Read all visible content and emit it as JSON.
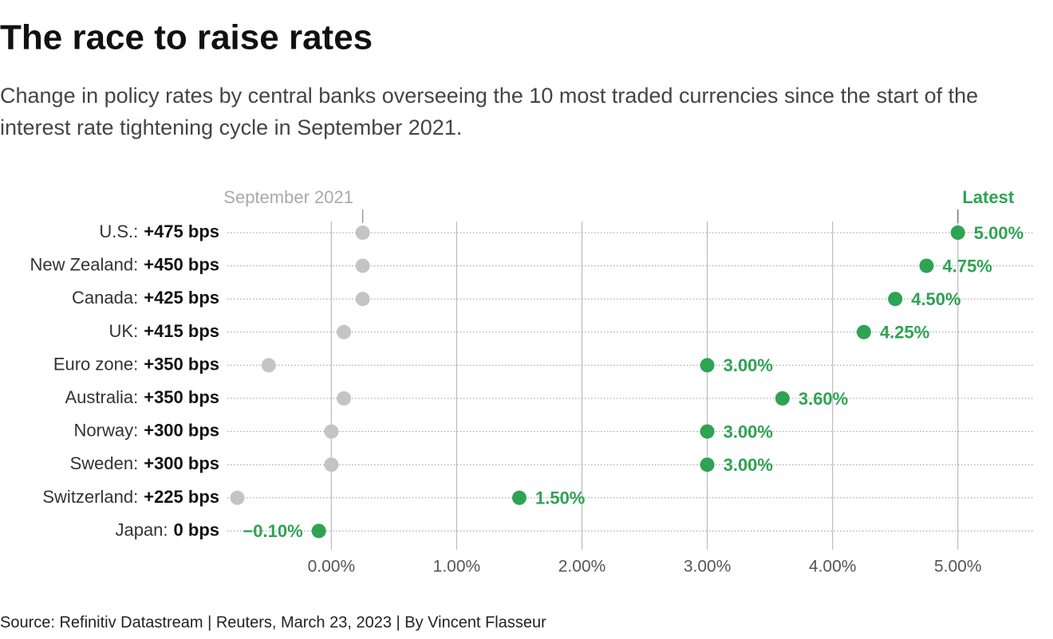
{
  "chart_data": {
    "type": "dumbbell",
    "title": "The race to raise rates",
    "subtitle": "Change in policy rates by central banks overseeing the 10 most traded currencies since the start of the interest rate tightening cycle in September 2021.",
    "source": "Source: Refinitiv Datastream | Reuters, March 23, 2023 | By Vincent Flasseur",
    "categories": [
      "U.S.:",
      "New Zealand:",
      "Canada:",
      "UK:",
      "Euro zone:",
      "Australia:",
      "Norway:",
      "Sweden:",
      "Switzerland:",
      "Japan:"
    ],
    "change_labels": [
      "+475 bps",
      "+450 bps",
      "+425 bps",
      "+415 bps",
      "+350 bps",
      "+350 bps",
      "+300 bps",
      "+300 bps",
      "+225 bps",
      "0 bps"
    ],
    "series": [
      {
        "name": "September 2021",
        "color": "#c4c4c4",
        "values": [
          0.25,
          0.25,
          0.25,
          0.1,
          -0.5,
          0.1,
          0,
          0,
          -0.75,
          -0.1
        ]
      },
      {
        "name": "Latest",
        "color": "#2ea353",
        "values": [
          5,
          4.75,
          4.5,
          4.25,
          3,
          3.6,
          3,
          3,
          1.5,
          -0.1
        ],
        "value_labels": [
          "5.00%",
          "4.75%",
          "4.50%",
          "4.25%",
          "3.00%",
          "3.60%",
          "3.00%",
          "3.00%",
          "1.50%",
          "−0.10%"
        ]
      }
    ],
    "xlim": [
      -0.83,
      5.6
    ],
    "xticks": [
      {
        "value": 0,
        "label": "0.00%"
      },
      {
        "value": 1,
        "label": "1.00%"
      },
      {
        "value": 2,
        "label": "2.00%"
      },
      {
        "value": 3,
        "label": "3.00%"
      },
      {
        "value": 4,
        "label": "4.00%"
      },
      {
        "value": 5,
        "label": "5.00%"
      }
    ],
    "grid": true
  }
}
